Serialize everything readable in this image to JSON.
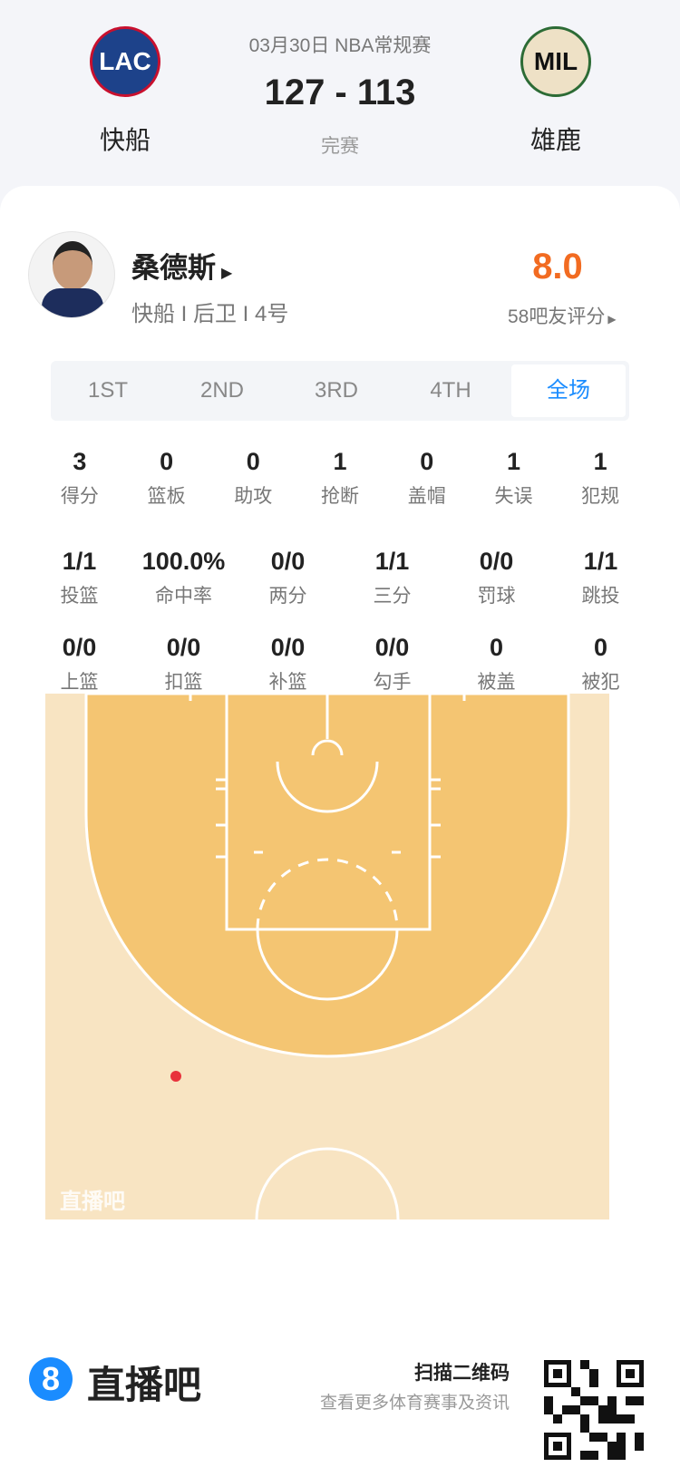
{
  "match": {
    "date_type": "03月30日 NBA常规赛",
    "score": "127 - 113",
    "status": "完赛",
    "home": {
      "name": "快船",
      "abbr": "LAC"
    },
    "away": {
      "name": "雄鹿",
      "abbr": "MIL"
    }
  },
  "player": {
    "name": "桑德斯",
    "info": "快船 I 后卫 I 4号",
    "rating": "8.0",
    "rating_label": "58吧友评分",
    "rating_color": "#f26b21"
  },
  "tabs": [
    {
      "label": "1ST"
    },
    {
      "label": "2ND"
    },
    {
      "label": "3RD"
    },
    {
      "label": "4TH"
    },
    {
      "label": "全场",
      "active": true
    }
  ],
  "stats_row1": [
    {
      "v": "3",
      "l": "得分"
    },
    {
      "v": "0",
      "l": "篮板"
    },
    {
      "v": "0",
      "l": "助攻"
    },
    {
      "v": "1",
      "l": "抢断"
    },
    {
      "v": "0",
      "l": "盖帽"
    },
    {
      "v": "1",
      "l": "失误"
    },
    {
      "v": "1",
      "l": "犯规"
    }
  ],
  "stats_row2": [
    {
      "v": "1/1",
      "l": "投篮"
    },
    {
      "v": "100.0%",
      "l": "命中率"
    },
    {
      "v": "0/0",
      "l": "两分"
    },
    {
      "v": "1/1",
      "l": "三分"
    },
    {
      "v": "0/0",
      "l": "罚球"
    },
    {
      "v": "1/1",
      "l": "跳投"
    }
  ],
  "stats_row3": [
    {
      "v": "0/0",
      "l": "上篮"
    },
    {
      "v": "0/0",
      "l": "扣篮"
    },
    {
      "v": "0/0",
      "l": "补篮"
    },
    {
      "v": "0/0",
      "l": "勾手"
    },
    {
      "v": "0",
      "l": "被盖"
    },
    {
      "v": "0",
      "l": "被犯"
    }
  ],
  "court": {
    "watermark": "直播吧",
    "shots": [
      {
        "result": "made",
        "type": "3PT"
      }
    ]
  },
  "footer": {
    "brand": "直播吧",
    "scan": "扫描二维码",
    "desc": "查看更多体育赛事及资讯",
    "accent": "#1a8cff"
  }
}
